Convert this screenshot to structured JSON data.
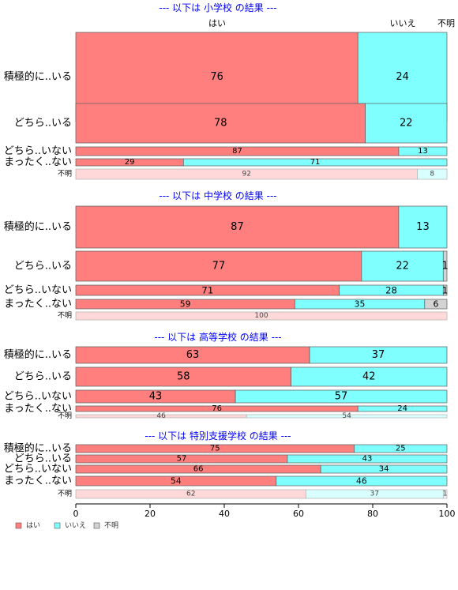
{
  "chart_data": {
    "type": "bar",
    "orientation": "horizontal",
    "stacked": "percent",
    "top_labels": [
      "はい",
      "いいえ",
      "不明"
    ],
    "xlim": [
      0,
      100
    ],
    "xticks": [
      0,
      20,
      40,
      60,
      80,
      100
    ],
    "legend": {
      "placement": "bottom-left",
      "entries": [
        "はい",
        "いいえ",
        "不明"
      ]
    },
    "colors": {
      "yes": "#ff7f7f",
      "no": "#80ffff",
      "unknown": "#d3d3d3",
      "title": "#0000ff"
    },
    "panels": [
      {
        "title": "--- 以下は 小学校 の結果 ---",
        "rows": [
          {
            "label": "積極的に..いる",
            "values": [
              76,
              24,
              0
            ]
          },
          {
            "label": "どちら..いる",
            "values": [
              78,
              22,
              0
            ]
          },
          {
            "label": "どちら..いない",
            "values": [
              87,
              13,
              0
            ]
          },
          {
            "label": "まったく..ない",
            "values": [
              29,
              71,
              0
            ]
          },
          {
            "label": "不明",
            "values": [
              92,
              8,
              0
            ],
            "faded": true
          }
        ]
      },
      {
        "title": "--- 以下は 中学校 の結果 ---",
        "rows": [
          {
            "label": "積極的に..いる",
            "values": [
              87,
              13,
              0
            ]
          },
          {
            "label": "どちら..いる",
            "values": [
              77,
              22,
              1
            ]
          },
          {
            "label": "どちら..いない",
            "values": [
              71,
              28,
              1
            ]
          },
          {
            "label": "まったく..ない",
            "values": [
              59,
              35,
              6
            ]
          },
          {
            "label": "不明",
            "values": [
              100,
              0,
              0
            ],
            "faded": true
          }
        ]
      },
      {
        "title": "--- 以下は 高等学校 の結果 ---",
        "rows": [
          {
            "label": "積極的に..いる",
            "values": [
              63,
              37,
              0
            ]
          },
          {
            "label": "どちら..いる",
            "values": [
              58,
              42,
              0
            ]
          },
          {
            "label": "どちら..いない",
            "values": [
              43,
              57,
              0
            ]
          },
          {
            "label": "まったく..ない",
            "values": [
              76,
              24,
              0
            ]
          },
          {
            "label": "不明",
            "values": [
              46,
              54,
              0
            ],
            "faded": true
          }
        ]
      },
      {
        "title": "--- 以下は 特別支援学校 の結果 ---",
        "rows": [
          {
            "label": "積極的に..いる",
            "values": [
              75,
              25,
              0
            ]
          },
          {
            "label": "どちら..いる",
            "values": [
              57,
              43,
              0
            ]
          },
          {
            "label": "どちら..いない",
            "values": [
              66,
              34,
              0
            ]
          },
          {
            "label": "まったく..ない",
            "values": [
              54,
              46,
              0
            ]
          },
          {
            "label": "不明",
            "values": [
              62,
              37,
              1
            ],
            "faded": true
          }
        ]
      }
    ]
  }
}
